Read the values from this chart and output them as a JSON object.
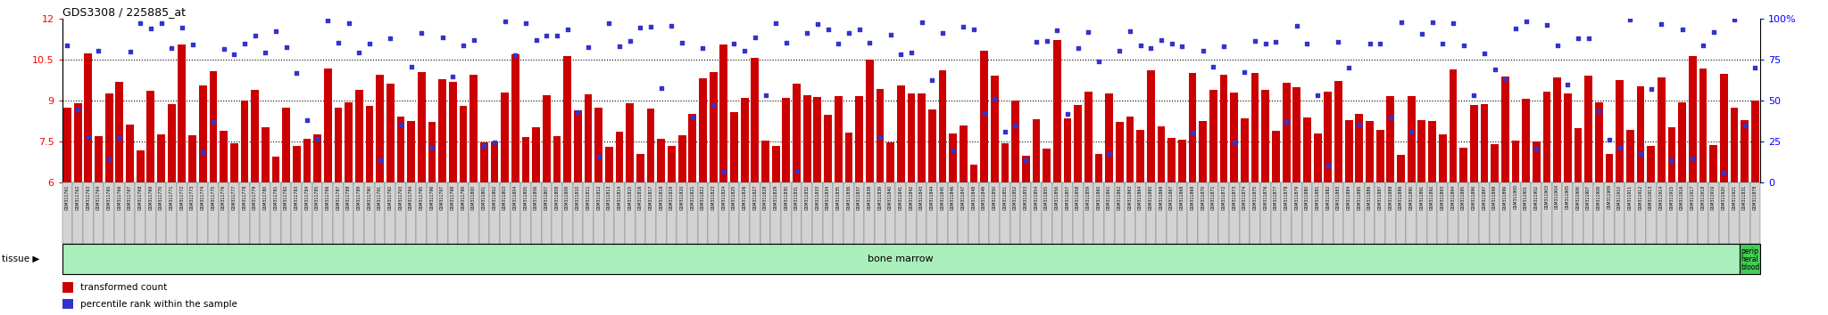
{
  "title": "GDS3308 / 225885_at",
  "ylim_left": [
    6,
    12
  ],
  "ylim_right": [
    0,
    100
  ],
  "yticks_left": [
    6,
    7.5,
    9,
    10.5,
    12
  ],
  "yticks_right": [
    0,
    25,
    50,
    75,
    100
  ],
  "hlines": [
    7.5,
    9,
    10.5
  ],
  "bar_color": "#cc0000",
  "dot_color": "#3333cc",
  "tissue_bm_color": "#aaeebb",
  "tissue_pb_color": "#44cc55",
  "tissue_label_bm": "bone marrow",
  "tissue_label_pb": "perip\nheral\nblood",
  "tissue_text": "tissue",
  "legend_bar": "transformed count",
  "legend_dot": "percentile rank within the sample",
  "n_bone_marrow": 161,
  "n_peripheral": 2,
  "bar_seed": 101,
  "dot_seed": 202
}
